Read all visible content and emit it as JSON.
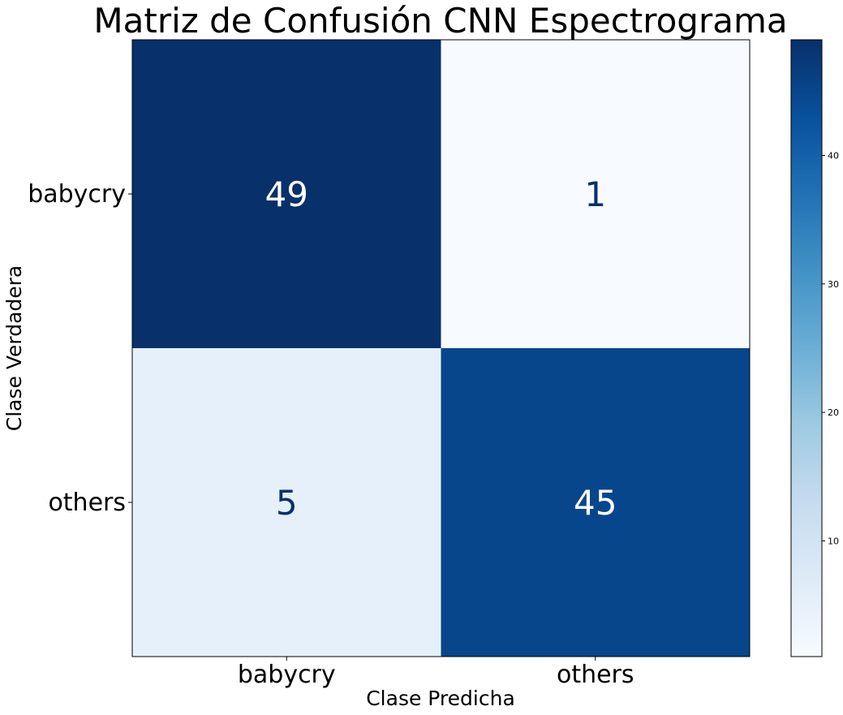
{
  "chart_data": {
    "type": "heatmap",
    "title": "Matriz de Confusión CNN Espectrograma",
    "xlabel": "Clase Predicha",
    "ylabel": "Clase Verdadera",
    "x_categories": [
      "babycry",
      "others"
    ],
    "y_categories": [
      "babycry",
      "others"
    ],
    "values": [
      [
        49,
        1
      ],
      [
        5,
        45
      ]
    ],
    "colormap": "Blues",
    "color_low": "#f7fbff",
    "color_high": "#08306b",
    "vmin": 1,
    "vmax": 49,
    "colorbar": {
      "ticks": [
        10,
        20,
        30,
        40
      ],
      "tick_labels": [
        "10",
        "20",
        "30",
        "40"
      ]
    },
    "grid": false
  }
}
